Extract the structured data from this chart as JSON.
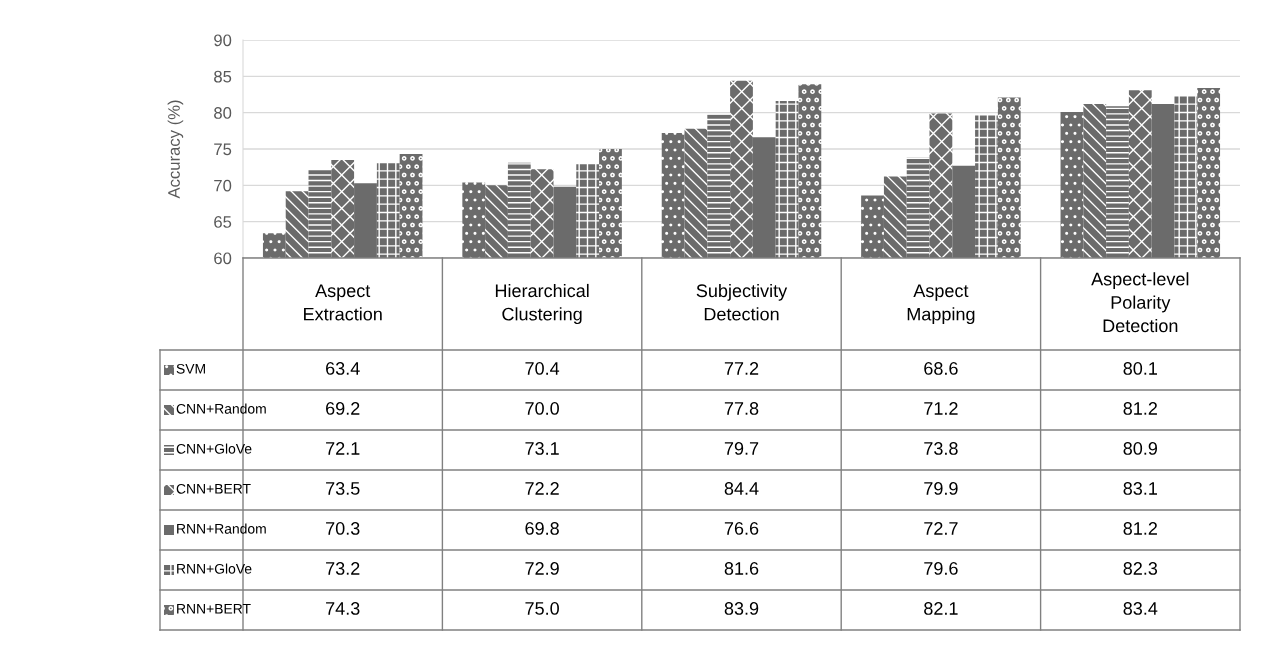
{
  "chart_data": {
    "type": "bar",
    "ylabel": "Accuracy (%)",
    "categories": [
      "Aspect Extraction",
      "Hierarchical Clustering",
      "Subjectivity Detection",
      "Aspect Mapping",
      "Aspect-level Polarity Detection"
    ],
    "series": [
      {
        "name": "SVM",
        "color": "#6b6b6b",
        "values": [
          63.4,
          70.4,
          77.2,
          68.6,
          80.1
        ],
        "value_labels": [
          "63.4",
          "70.4",
          "77.2",
          "68.6",
          "80.1"
        ]
      },
      {
        "name": "CNN+Random",
        "color": "#6b6b6b",
        "values": [
          69.2,
          70.0,
          77.8,
          71.2,
          81.2
        ],
        "value_labels": [
          "69.2",
          "70.0",
          "77.8",
          "71.2",
          "81.2"
        ]
      },
      {
        "name": "CNN+GloVe",
        "color": "#6b6b6b",
        "values": [
          72.1,
          73.1,
          79.7,
          73.8,
          80.9
        ],
        "value_labels": [
          "72.1",
          "73.1",
          "79.7",
          "73.8",
          "80.9"
        ]
      },
      {
        "name": "CNN+BERT",
        "color": "#6b6b6b",
        "values": [
          73.5,
          72.2,
          84.4,
          79.9,
          83.1
        ],
        "value_labels": [
          "73.5",
          "72.2",
          "84.4",
          "79.9",
          "83.1"
        ]
      },
      {
        "name": "RNN+Random",
        "color": "#6b6b6b",
        "values": [
          70.3,
          69.8,
          76.6,
          72.7,
          81.2
        ],
        "value_labels": [
          "70.3",
          "69.8",
          "76.6",
          "72.7",
          "81.2"
        ]
      },
      {
        "name": "RNN+GloVe",
        "color": "#6b6b6b",
        "values": [
          73.2,
          72.9,
          81.6,
          79.6,
          82.3
        ],
        "value_labels": [
          "73.2",
          "72.9",
          "81.6",
          "79.6",
          "82.3"
        ]
      },
      {
        "name": "RNN+BERT",
        "color": "#6b6b6b",
        "values": [
          74.3,
          75.0,
          83.9,
          82.1,
          83.4
        ],
        "value_labels": [
          "74.3",
          "75.0",
          "83.9",
          "82.1",
          "83.4"
        ]
      }
    ],
    "ylim": [
      60,
      90
    ],
    "yticks": [
      60,
      65,
      70,
      75,
      80,
      85,
      90
    ],
    "grid": "y",
    "legend": "bottom"
  }
}
